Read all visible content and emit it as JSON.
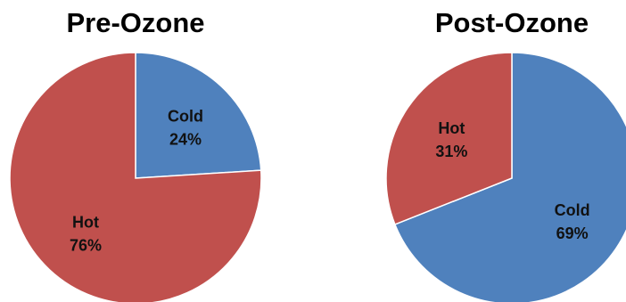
{
  "colors": {
    "cold": "#4f81bd",
    "hot": "#c0504d"
  },
  "chart_data": [
    {
      "type": "pie",
      "title": "Pre-Ozone",
      "slices": [
        {
          "label": "Cold",
          "value": 24,
          "percent_label": "24%",
          "color": "#4f81bd"
        },
        {
          "label": "Hot",
          "value": 76,
          "percent_label": "76%",
          "color": "#c0504d"
        }
      ],
      "start_angle": "12 o'clock",
      "direction": "clockwise",
      "legend": "none"
    },
    {
      "type": "pie",
      "title": "Post-Ozone",
      "slices": [
        {
          "label": "Cold",
          "value": 69,
          "percent_label": "69%",
          "color": "#4f81bd"
        },
        {
          "label": "Hot",
          "value": 31,
          "percent_label": "31%",
          "color": "#c0504d"
        }
      ],
      "start_angle": "12 o'clock",
      "direction": "clockwise",
      "legend": "none"
    }
  ]
}
